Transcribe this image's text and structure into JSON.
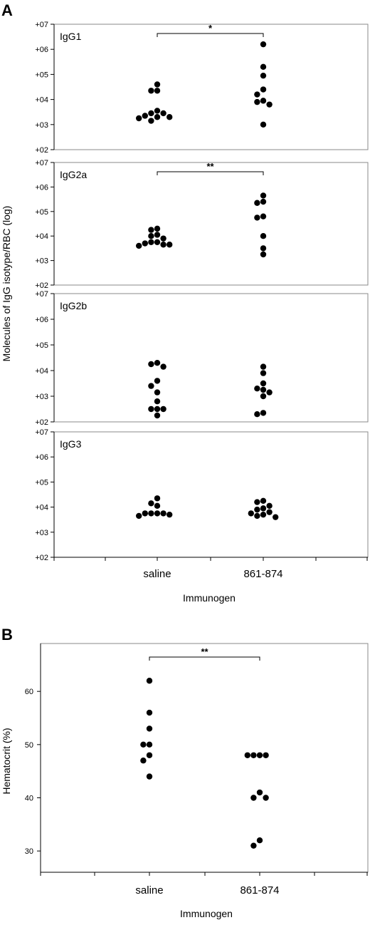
{
  "figure": {
    "letter_a": "A",
    "letter_b": "B"
  },
  "chart_data": [
    {
      "type": "scatter",
      "id": "A",
      "scale": "log",
      "ylabel": "Molecules of IgG isotype/RBC (log)",
      "xlabel": "Immunogen",
      "categories": [
        "saline",
        "861-874"
      ],
      "yticks": [
        {
          "value": 2,
          "label": "+02"
        },
        {
          "value": 3,
          "label": "+03"
        },
        {
          "value": 4,
          "label": "+04"
        },
        {
          "value": 5,
          "label": "+05"
        },
        {
          "value": 6,
          "label": "+06"
        },
        {
          "value": 7,
          "label": "+07"
        }
      ],
      "ylim": [
        2,
        7
      ],
      "panels": [
        {
          "name": "IgG1",
          "significance": "*",
          "series": [
            {
              "category": "saline",
              "values": [
                4.6,
                4.35,
                4.35,
                3.55,
                3.45,
                3.45,
                3.35,
                3.3,
                3.3,
                3.25,
                3.15
              ]
            },
            {
              "category": "861-874",
              "values": [
                6.2,
                5.3,
                4.95,
                4.4,
                4.2,
                3.95,
                3.9,
                3.8,
                3.0
              ]
            }
          ]
        },
        {
          "name": "IgG2a",
          "significance": "**",
          "series": [
            {
              "category": "saline",
              "values": [
                4.3,
                4.25,
                4.05,
                4.0,
                3.9,
                3.75,
                3.75,
                3.7,
                3.65,
                3.65,
                3.6
              ]
            },
            {
              "category": "861-874",
              "values": [
                5.65,
                5.4,
                5.35,
                4.8,
                4.75,
                4.0,
                3.5,
                3.25
              ]
            }
          ]
        },
        {
          "name": "IgG2b",
          "significance": "",
          "series": [
            {
              "category": "saline",
              "values": [
                4.3,
                4.25,
                4.15,
                3.6,
                3.4,
                3.15,
                2.8,
                2.5,
                2.5,
                2.5,
                2.25
              ]
            },
            {
              "category": "861-874",
              "values": [
                4.15,
                3.9,
                3.5,
                3.3,
                3.25,
                3.15,
                3.0,
                2.35,
                2.3
              ]
            }
          ]
        },
        {
          "name": "IgG3",
          "significance": "",
          "series": [
            {
              "category": "saline",
              "values": [
                4.35,
                4.15,
                4.05,
                3.75,
                3.75,
                3.75,
                3.75,
                3.7,
                3.65
              ]
            },
            {
              "category": "861-874",
              "values": [
                4.25,
                4.2,
                4.05,
                3.95,
                3.9,
                3.8,
                3.75,
                3.7,
                3.65,
                3.6
              ]
            }
          ]
        }
      ]
    },
    {
      "type": "scatter",
      "id": "B",
      "ylabel": "Hematocrit (%)",
      "xlabel": "Immunogen",
      "categories": [
        "saline",
        "861-874"
      ],
      "yticks": [
        {
          "value": 30,
          "label": "30"
        },
        {
          "value": 40,
          "label": "40"
        },
        {
          "value": 50,
          "label": "50"
        },
        {
          "value": 60,
          "label": "60"
        }
      ],
      "ylim": [
        26,
        69
      ],
      "significance": "**",
      "series": [
        {
          "category": "saline",
          "values": [
            62,
            56,
            53,
            50,
            50,
            48,
            47,
            44
          ]
        },
        {
          "category": "861-874",
          "values": [
            48,
            48,
            48,
            48,
            41,
            40,
            40,
            32,
            31
          ]
        }
      ]
    }
  ]
}
